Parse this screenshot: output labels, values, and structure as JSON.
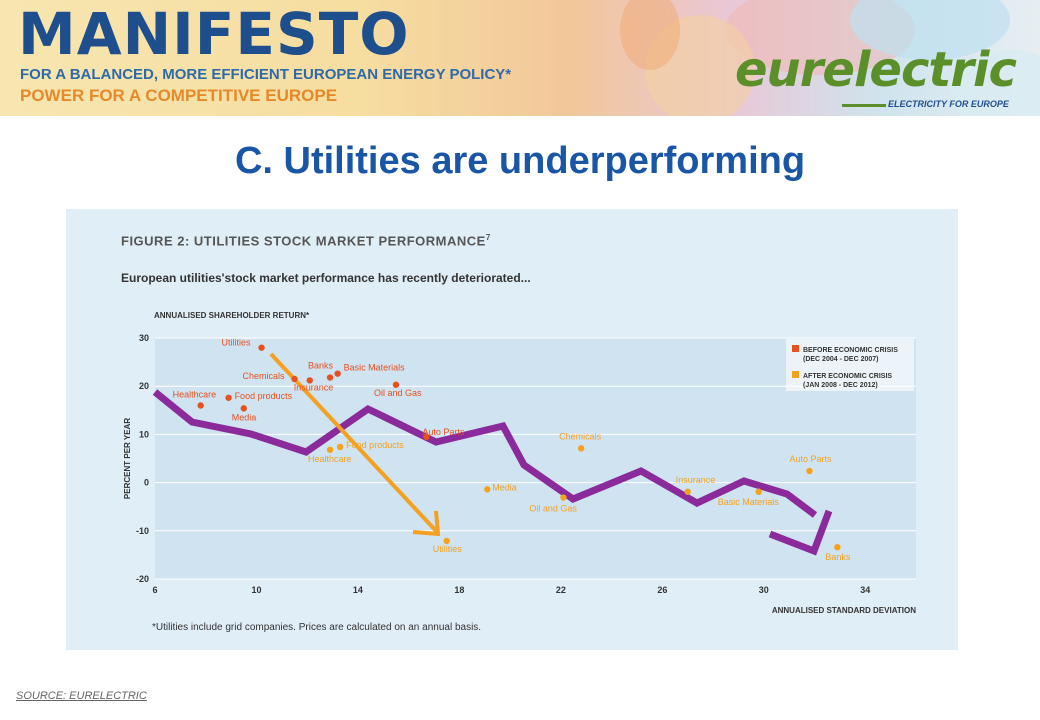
{
  "header": {
    "brand": "MANIFESTO",
    "tagline_1": "FOR A BALANCED, MORE EFFICIENT EUROPEAN ENERGY POLICY*",
    "tagline_2": "POWER FOR A COMPETITIVE EUROPE",
    "logo": "eurelectric",
    "logo_tagline": "ELECTRICITY FOR EUROPE"
  },
  "slide_title": "C. Utilities are underperforming",
  "figure": {
    "title": "FIGURE 2: UTILITIES STOCK MARKET PERFORMANCE",
    "title_sup": "7",
    "subtitle": "European utilities'stock market performance has recently deteriorated...",
    "footnote": "*Utilities include grid companies. Prices are calculated on an annual basis."
  },
  "source": "SOURCE: EURELECTRIC",
  "colors": {
    "before": "#e8501e",
    "after": "#f4a21c",
    "trend": "#8b2a9b",
    "arrow": "#f4a021",
    "title": "#1a56a6",
    "grid": "#ffffff",
    "panel": "#e0eef8"
  },
  "chart_data": {
    "type": "scatter",
    "xlabel": "ANNUALISED STANDARD DEVIATION",
    "ylabel": "PERCENT PER YEAR",
    "ytitle": "ANNUALISED SHAREHOLDER RETURN*",
    "xlim": [
      6,
      36
    ],
    "ylim": [
      -20,
      30
    ],
    "xticks": [
      6,
      10,
      14,
      18,
      22,
      26,
      30,
      34
    ],
    "yticks": [
      30,
      20,
      10,
      0,
      -10,
      -20
    ],
    "legend_position": "top-right",
    "series": [
      {
        "name": "BEFORE ECONOMIC CRISIS",
        "period": "(DEC 2004 - DEC 2007)",
        "color": "#e8501e",
        "points": [
          {
            "label": "Utilities",
            "x": 10.2,
            "y": 28
          },
          {
            "label": "Chemicals",
            "x": 11.5,
            "y": 21.5
          },
          {
            "label": "Banks",
            "x": 12.9,
            "y": 21.8
          },
          {
            "label": "Basic Materials",
            "x": 13.2,
            "y": 22.6
          },
          {
            "label": "Insurance",
            "x": 12.1,
            "y": 21.2
          },
          {
            "label": "Healthcare",
            "x": 7.8,
            "y": 16
          },
          {
            "label": "Food products",
            "x": 8.9,
            "y": 17.6
          },
          {
            "label": "Media",
            "x": 9.5,
            "y": 15.4
          },
          {
            "label": "Oil and Gas",
            "x": 15.5,
            "y": 20.3
          },
          {
            "label": "Auto Parts",
            "x": 16.7,
            "y": 9.5
          }
        ]
      },
      {
        "name": "AFTER ECONOMIC CRISIS",
        "period": "(JAN 2008 - DEC 2012)",
        "color": "#f4a21c",
        "points": [
          {
            "label": "Healthcare",
            "x": 12.9,
            "y": 6.8
          },
          {
            "label": "Food products",
            "x": 13.3,
            "y": 7.4
          },
          {
            "label": "Media",
            "x": 19.1,
            "y": -1.4
          },
          {
            "label": "Oil and Gas",
            "x": 22.1,
            "y": -3.1
          },
          {
            "label": "Chemicals",
            "x": 22.8,
            "y": 7.1
          },
          {
            "label": "Insurance",
            "x": 27.0,
            "y": -1.9
          },
          {
            "label": "Basic Materials",
            "x": 29.8,
            "y": -1.9
          },
          {
            "label": "Auto Parts",
            "x": 31.8,
            "y": 2.4
          },
          {
            "label": "Utilities",
            "x": 17.5,
            "y": -12.1
          },
          {
            "label": "Banks",
            "x": 32.9,
            "y": -13.4
          }
        ]
      }
    ]
  }
}
